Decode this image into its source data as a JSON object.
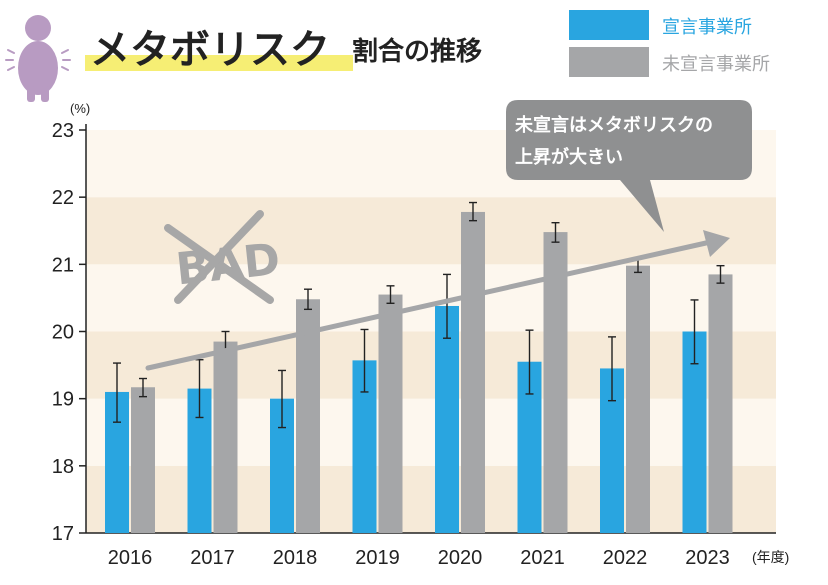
{
  "title": {
    "main": "メタボリスク",
    "sub": "割合の推移"
  },
  "legend": {
    "items": [
      {
        "label": "宣言事業所",
        "color": "#29a5e0"
      },
      {
        "label": "未宣言事業所",
        "color": "#a5a6a8"
      }
    ]
  },
  "callout": {
    "line1": "未宣言はメタボリスクの",
    "line2": "上昇が大きい"
  },
  "stamp": {
    "text": "BAD"
  },
  "colors": {
    "declared": "#29a5e0",
    "undeclared": "#a5a6a8",
    "band_dark": "#f6ead8",
    "band_light": "#fdf7ee",
    "arrow": "#a5a6a8",
    "callout": "#8f9091",
    "figure": "#b89bc2"
  },
  "chart_data": {
    "type": "bar",
    "categories": [
      "2016",
      "2017",
      "2018",
      "2019",
      "2020",
      "2021",
      "2022",
      "2023"
    ],
    "series": [
      {
        "name": "宣言事業所",
        "values": [
          19.1,
          19.15,
          19.0,
          19.57,
          20.38,
          19.55,
          19.45,
          20.0
        ],
        "error_low": [
          18.65,
          18.72,
          18.57,
          19.1,
          19.9,
          19.07,
          18.97,
          19.52
        ],
        "error_high": [
          19.53,
          19.58,
          19.42,
          20.03,
          20.85,
          20.02,
          19.92,
          20.47
        ]
      },
      {
        "name": "未宣言事業所",
        "values": [
          19.17,
          19.85,
          20.48,
          20.55,
          21.78,
          21.48,
          20.98,
          20.85
        ],
        "error_low": [
          19.03,
          19.72,
          20.33,
          20.42,
          21.65,
          21.33,
          20.88,
          20.72
        ],
        "error_high": [
          19.3,
          20.0,
          20.63,
          20.68,
          21.92,
          21.62,
          21.08,
          20.98
        ]
      }
    ],
    "yunit": "(%)",
    "xunit": "(年度)",
    "ylim": [
      17,
      23
    ],
    "yticks": [
      "17",
      "18",
      "19",
      "20",
      "21",
      "22",
      "23"
    ]
  }
}
